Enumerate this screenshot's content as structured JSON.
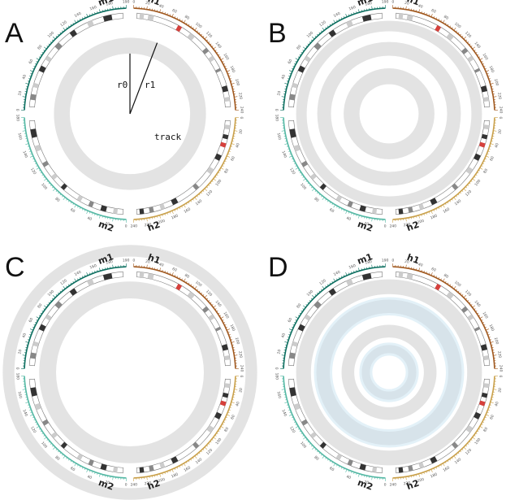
{
  "panels": [
    {
      "label": "A",
      "track_annotation": "track",
      "radius_labels": [
        "r0",
        "r1"
      ]
    },
    {
      "label": "B"
    },
    {
      "label": "C"
    },
    {
      "label": "D"
    }
  ],
  "chromosomes": [
    {
      "name": "h1",
      "color": "#a0581e",
      "tick_labels": [
        "0",
        "20",
        "40",
        "60",
        "80",
        "100",
        "120",
        "140",
        "160",
        "180",
        "200",
        "220",
        "240"
      ]
    },
    {
      "name": "h2",
      "color": "#c9a04a",
      "tick_labels": [
        "0",
        "20",
        "40",
        "60",
        "80",
        "100",
        "120",
        "140",
        "160",
        "180",
        "200",
        "220",
        "240"
      ]
    },
    {
      "name": "m2",
      "color": "#54b8a4",
      "tick_labels": [
        "0",
        "20",
        "40",
        "60",
        "80",
        "100",
        "120",
        "140",
        "160",
        "180"
      ]
    },
    {
      "name": "m1",
      "color": "#0b6e5f",
      "tick_labels": [
        "0",
        "20",
        "40",
        "60",
        "80",
        "100",
        "120",
        "140",
        "160",
        "180",
        "190"
      ]
    }
  ],
  "colors": {
    "track_fill": "#e3e3e3",
    "highlight_fill": "#d7e3ea",
    "highlight_stroke": "#e3f1f8",
    "centromere": "#d6403c",
    "band_dark": "#333333",
    "band_mid": "#888888",
    "band_light": "#cccccc",
    "ideogram_outline": "#777777"
  }
}
